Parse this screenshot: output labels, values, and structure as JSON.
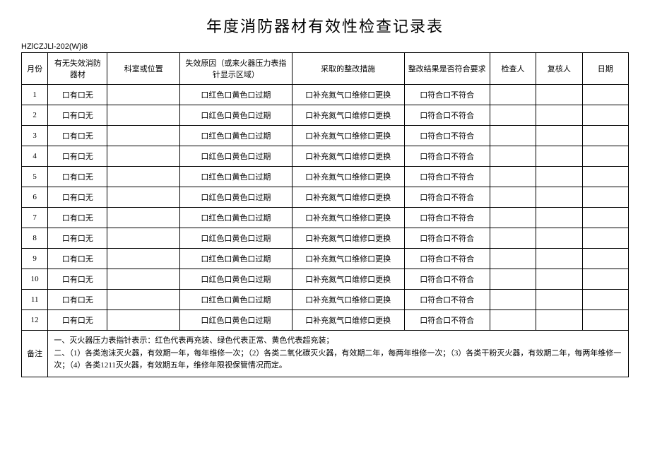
{
  "title": "年度消防器材有效性检查记录表",
  "doc_code": "HZlCZJLl-202(W)i8",
  "headers": {
    "month": "月份",
    "status": "有无失效消防器材",
    "location": "科室或位置",
    "reason": "失效原因（或来火器压力表指针显示区域）",
    "action": "采取的整改措施",
    "result": "整改结果是否符合要求",
    "inspector": "检查人",
    "reviewer": "复核人",
    "date": "日期"
  },
  "row_template": {
    "status": "口有口无",
    "reason": "口红色口黄色口过期",
    "action": "口补充氮气口维修口更换",
    "result": "口符合口不符合"
  },
  "months": [
    "1",
    "2",
    "3",
    "4",
    "5",
    "6",
    "7",
    "8",
    "9",
    "10",
    "11",
    "12"
  ],
  "notes_label": "备注",
  "notes_lines": [
    "一、灭火器压力表指针表示：红色代表再充装、绿色代表正常、黄色代表超充装；",
    "二、（1）各类泡沫灭火器，有效期一年，每年维修一次；（2）各类二氧化碳灭火器，有效期二年，每两年维修一次；（3）各类干粉灭火器，有效期二年，每两年维修一次；（4）各类1211灭火器，有效期五年，维修年限视保管情况而定。"
  ]
}
